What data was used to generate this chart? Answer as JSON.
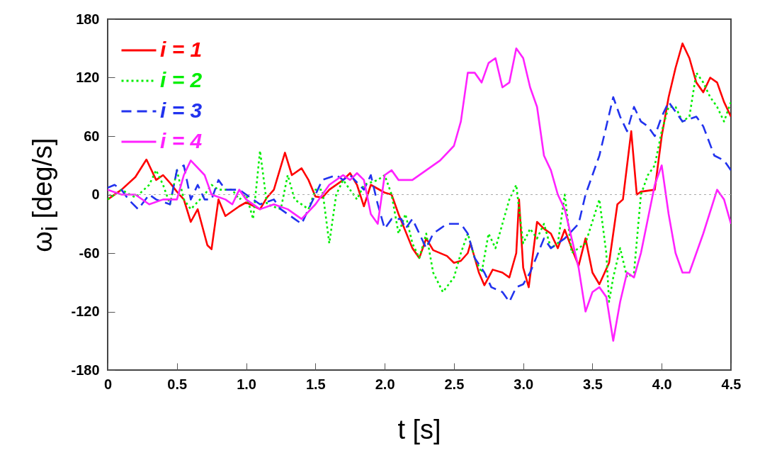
{
  "chart_data": {
    "type": "line",
    "xlabel": "t [s]",
    "ylabel": "ω$_{i}$ [deg/s]",
    "xlim": [
      0,
      4.5
    ],
    "ylim": [
      -180,
      180
    ],
    "xticks": [
      0,
      {
        "value": 0.5,
        "label": "0.5"
      },
      {
        "value": 1,
        "label": "1.0"
      },
      {
        "value": 1.5,
        "label": "1.5"
      },
      {
        "value": 2,
        "label": "2.0"
      },
      {
        "value": 2.5,
        "label": "2.5"
      },
      {
        "value": 3,
        "label": "3.0"
      },
      {
        "value": 3.5,
        "label": "3.5"
      },
      {
        "value": 4,
        "label": "4.0"
      },
      {
        "value": 4.5,
        "label": "4.5"
      }
    ],
    "yticks": [
      -180,
      -120,
      -60,
      0,
      60,
      120,
      180
    ],
    "grid": false,
    "legend": "top left",
    "marker": "none",
    "ref_lines": [
      {
        "axis": "y",
        "value": 0,
        "color": "#aaaaaa",
        "line_style": "dotted"
      }
    ],
    "series": [
      {
        "name": "i = 1",
        "color": "#ff0000",
        "line_style": "solid",
        "x": [
          0,
          0.1,
          0.2,
          0.28,
          0.35,
          0.4,
          0.45,
          0.5,
          0.55,
          0.6,
          0.65,
          0.72,
          0.75,
          0.8,
          0.85,
          0.95,
          1.0,
          1.1,
          1.15,
          1.2,
          1.28,
          1.33,
          1.4,
          1.45,
          1.5,
          1.55,
          1.6,
          1.7,
          1.75,
          1.8,
          1.85,
          1.9,
          2.0,
          2.05,
          2.1,
          2.2,
          2.25,
          2.3,
          2.35,
          2.45,
          2.5,
          2.55,
          2.6,
          2.62,
          2.68,
          2.72,
          2.78,
          2.85,
          2.9,
          2.95,
          2.97,
          3.0,
          3.04,
          3.1,
          3.15,
          3.2,
          3.25,
          3.3,
          3.35,
          3.4,
          3.45,
          3.5,
          3.55,
          3.62,
          3.68,
          3.72,
          3.78,
          3.82,
          3.85,
          3.95,
          4.0,
          4.05,
          4.1,
          4.15,
          4.2,
          4.25,
          4.3,
          4.35,
          4.4,
          4.45,
          4.5
        ],
        "values": [
          -5,
          5,
          18,
          36,
          15,
          20,
          12,
          3,
          -5,
          -28,
          -15,
          -52,
          -56,
          -5,
          -22,
          -12,
          -8,
          -15,
          -3,
          5,
          43,
          20,
          27,
          15,
          -2,
          -3,
          5,
          15,
          22,
          10,
          -12,
          10,
          2,
          0,
          -20,
          -55,
          -65,
          -45,
          -57,
          -63,
          -70,
          -68,
          -60,
          -50,
          -80,
          -93,
          -77,
          -80,
          -85,
          -60,
          -5,
          -75,
          -95,
          -28,
          -35,
          -40,
          -55,
          -36,
          -55,
          -73,
          -45,
          -80,
          -92,
          -70,
          -10,
          -5,
          65,
          0,
          3,
          5,
          60,
          100,
          130,
          155,
          140,
          115,
          105,
          120,
          115,
          95,
          80
        ]
      },
      {
        "name": "i = 2",
        "color": "#00ee00",
        "line_style": "dotted",
        "x": [
          0,
          0.1,
          0.2,
          0.3,
          0.35,
          0.4,
          0.45,
          0.5,
          0.55,
          0.6,
          0.7,
          0.75,
          0.8,
          0.9,
          0.95,
          1.0,
          1.05,
          1.1,
          1.15,
          1.25,
          1.3,
          1.35,
          1.45,
          1.5,
          1.55,
          1.6,
          1.65,
          1.7,
          1.8,
          1.85,
          1.95,
          2.0,
          2.05,
          2.1,
          2.15,
          2.2,
          2.25,
          2.3,
          2.35,
          2.42,
          2.5,
          2.55,
          2.6,
          2.65,
          2.7,
          2.75,
          2.8,
          2.85,
          2.9,
          2.95,
          3.0,
          3.05,
          3.1,
          3.15,
          3.2,
          3.25,
          3.3,
          3.35,
          3.45,
          3.55,
          3.6,
          3.62,
          3.65,
          3.7,
          3.75,
          3.8,
          3.85,
          3.9,
          3.95,
          4.0,
          4.05,
          4.1,
          4.15,
          4.2,
          4.25,
          4.3,
          4.35,
          4.4,
          4.45,
          4.5
        ],
        "values": [
          -5,
          5,
          -3,
          10,
          25,
          10,
          -10,
          25,
          -5,
          -15,
          0,
          10,
          5,
          5,
          -5,
          0,
          -25,
          45,
          -10,
          -15,
          20,
          -5,
          -15,
          5,
          5,
          -50,
          0,
          15,
          -5,
          10,
          15,
          20,
          0,
          -40,
          -20,
          -50,
          -65,
          -40,
          -80,
          -100,
          -85,
          -60,
          -40,
          -65,
          -80,
          -40,
          -55,
          -30,
          -5,
          10,
          -50,
          -35,
          -45,
          -30,
          -55,
          -50,
          0,
          -60,
          -50,
          -5,
          -60,
          -110,
          -85,
          -55,
          -85,
          -80,
          0,
          20,
          30,
          65,
          90,
          90,
          75,
          80,
          125,
          115,
          100,
          90,
          75,
          95
        ]
      },
      {
        "name": "i = 3",
        "color": "#2233ee",
        "line_style": "dashed",
        "x": [
          0,
          0.05,
          0.1,
          0.15,
          0.22,
          0.3,
          0.35,
          0.45,
          0.5,
          0.55,
          0.6,
          0.65,
          0.7,
          0.75,
          0.8,
          0.85,
          0.95,
          1.0,
          1.05,
          1.1,
          1.2,
          1.25,
          1.3,
          1.35,
          1.4,
          1.45,
          1.5,
          1.55,
          1.65,
          1.7,
          1.75,
          1.85,
          1.9,
          1.95,
          2.0,
          2.05,
          2.12,
          2.15,
          2.2,
          2.25,
          2.3,
          2.35,
          2.4,
          2.45,
          2.55,
          2.6,
          2.65,
          2.72,
          2.77,
          2.85,
          2.9,
          2.95,
          3.0,
          3.05,
          3.15,
          3.2,
          3.3,
          3.4,
          3.45,
          3.5,
          3.55,
          3.6,
          3.65,
          3.7,
          3.75,
          3.8,
          3.85,
          3.9,
          3.95,
          4.0,
          4.05,
          4.1,
          4.15,
          4.25,
          4.3,
          4.38,
          4.45,
          4.5
        ],
        "values": [
          7,
          10,
          5,
          -5,
          -15,
          0,
          -5,
          -10,
          25,
          30,
          -5,
          10,
          -5,
          -5,
          15,
          5,
          5,
          0,
          -5,
          -10,
          -5,
          -15,
          -20,
          -25,
          -30,
          -15,
          0,
          15,
          20,
          15,
          20,
          5,
          20,
          -10,
          -35,
          -25,
          -25,
          -35,
          -25,
          -40,
          -55,
          -40,
          -35,
          -30,
          -30,
          -40,
          -65,
          -80,
          -95,
          -100,
          -110,
          -95,
          -92,
          -80,
          -45,
          -55,
          -45,
          -30,
          0,
          20,
          40,
          70,
          100,
          80,
          65,
          90,
          75,
          70,
          60,
          80,
          95,
          85,
          75,
          80,
          70,
          40,
          35,
          25
        ]
      },
      {
        "name": "i = 4",
        "color": "#ff22ff",
        "line_style": "solid",
        "x": [
          0,
          0.1,
          0.2,
          0.3,
          0.4,
          0.5,
          0.55,
          0.6,
          0.7,
          0.75,
          0.85,
          0.9,
          0.95,
          1.0,
          1.1,
          1.2,
          1.3,
          1.4,
          1.5,
          1.6,
          1.7,
          1.75,
          1.8,
          1.85,
          1.9,
          1.95,
          2.0,
          2.05,
          2.1,
          2.2,
          2.3,
          2.4,
          2.5,
          2.55,
          2.6,
          2.65,
          2.7,
          2.75,
          2.8,
          2.85,
          2.9,
          2.95,
          3.0,
          3.05,
          3.1,
          3.15,
          3.2,
          3.25,
          3.3,
          3.35,
          3.4,
          3.45,
          3.5,
          3.55,
          3.6,
          3.65,
          3.7,
          3.75,
          3.8,
          3.85,
          3.95,
          4.0,
          4.05,
          4.1,
          4.15,
          4.2,
          4.3,
          4.4,
          4.45,
          4.5
        ],
        "values": [
          5,
          0,
          0,
          -10,
          -5,
          -5,
          20,
          35,
          20,
          0,
          -5,
          -10,
          5,
          -5,
          -15,
          -10,
          -15,
          -25,
          -10,
          10,
          20,
          15,
          22,
          15,
          -20,
          -30,
          20,
          25,
          15,
          15,
          25,
          35,
          50,
          75,
          125,
          125,
          115,
          135,
          140,
          110,
          115,
          150,
          140,
          110,
          90,
          40,
          25,
          0,
          -15,
          -45,
          -75,
          -120,
          -100,
          -95,
          -105,
          -150,
          -110,
          -80,
          -85,
          -60,
          10,
          30,
          -20,
          -60,
          -80,
          -80,
          -40,
          5,
          -5,
          -30
        ]
      }
    ]
  }
}
